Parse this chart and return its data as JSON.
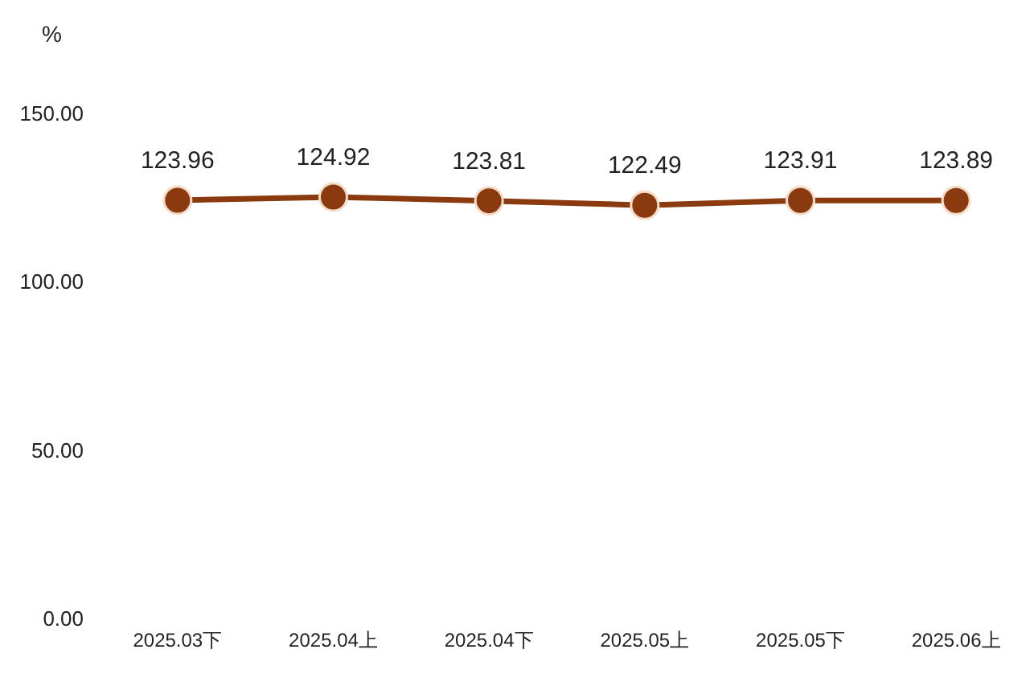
{
  "chart_data": {
    "type": "line",
    "ylabel": "%",
    "categories": [
      "2025.03下",
      "2025.04上",
      "2025.04下",
      "2025.05上",
      "2025.05下",
      "2025.06上"
    ],
    "series": [
      {
        "color": "#8b3a0f",
        "values": [
          123.96,
          124.92,
          123.81,
          122.49,
          123.91,
          123.89
        ]
      }
    ],
    "ylim": [
      0,
      150
    ],
    "yticks": [
      {
        "value": 0,
        "label": "0.00"
      },
      {
        "value": 50,
        "label": "50.00"
      },
      {
        "value": 100,
        "label": "100.00"
      },
      {
        "value": 150,
        "label": "150.00"
      }
    ],
    "data_labels": true,
    "grid": false,
    "marker": "circle",
    "line_style": "solid"
  }
}
